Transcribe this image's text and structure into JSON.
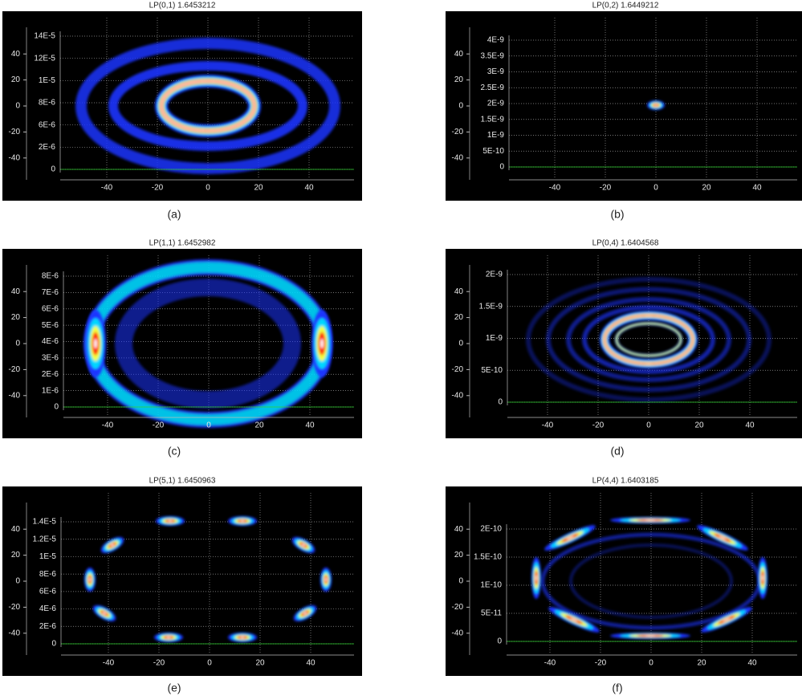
{
  "panels": [
    {
      "title": "LP(0,1) 1.6453212",
      "caption": "(a)",
      "y_ticks": [
        40,
        20,
        0,
        -20,
        -40
      ],
      "x_ticks": [
        -40,
        -20,
        0,
        20,
        40
      ],
      "intensity_ticks": [
        "14E-5",
        "12E-5",
        "1E-5",
        "8E-6",
        "6E-6",
        "2E-6",
        "0"
      ]
    },
    {
      "title": "LP(0,2) 1.6449212",
      "caption": "(b)",
      "y_ticks": [
        40,
        20,
        0,
        -20,
        -40
      ],
      "x_ticks": [
        -40,
        -20,
        0,
        20,
        40
      ],
      "intensity_ticks": [
        "4E-9",
        "3.5E-9",
        "3E-9",
        "2.5E-9",
        "2E-9",
        "1.5E-9",
        "1E-9",
        "5E-10",
        "0"
      ]
    },
    {
      "title": "LP(1,1) 1.6452982",
      "caption": "(c)",
      "y_ticks": [
        40,
        20,
        0,
        -20,
        -40
      ],
      "x_ticks": [
        -40,
        -20,
        0,
        20,
        40
      ],
      "intensity_ticks": [
        "8E-6",
        "7E-6",
        "6E-6",
        "5E-6",
        "4E-6",
        "3E-6",
        "2E-6",
        "1E-6",
        "0"
      ]
    },
    {
      "title": "LP(0,4) 1.6404568",
      "caption": "(d)",
      "y_ticks": [
        40,
        20,
        0,
        -20,
        -40
      ],
      "x_ticks": [
        -40,
        -20,
        0,
        20,
        40
      ],
      "intensity_ticks": [
        "2E-9",
        "1.5E-9",
        "1E-9",
        "5E-10",
        "0"
      ]
    },
    {
      "title": "LP(5,1) 1.6450963",
      "caption": "(e)",
      "y_ticks": [
        40,
        20,
        0,
        -20,
        -40
      ],
      "x_ticks": [
        -40,
        -20,
        0,
        20,
        40
      ],
      "intensity_ticks": [
        "1.4E-5",
        "1.2E-5",
        "1E-5",
        "8E-6",
        "6E-6",
        "4E-6",
        "2E-6",
        "0"
      ]
    },
    {
      "title": "LP(4,4) 1.6403185",
      "caption": "(f)",
      "y_ticks": [
        40,
        20,
        0,
        -20,
        -40
      ],
      "x_ticks": [
        -40,
        -20,
        0,
        20,
        40
      ],
      "intensity_ticks": [
        "2E-10",
        "1.5E-10",
        "1E-10",
        "5E-11",
        "0"
      ]
    }
  ]
}
